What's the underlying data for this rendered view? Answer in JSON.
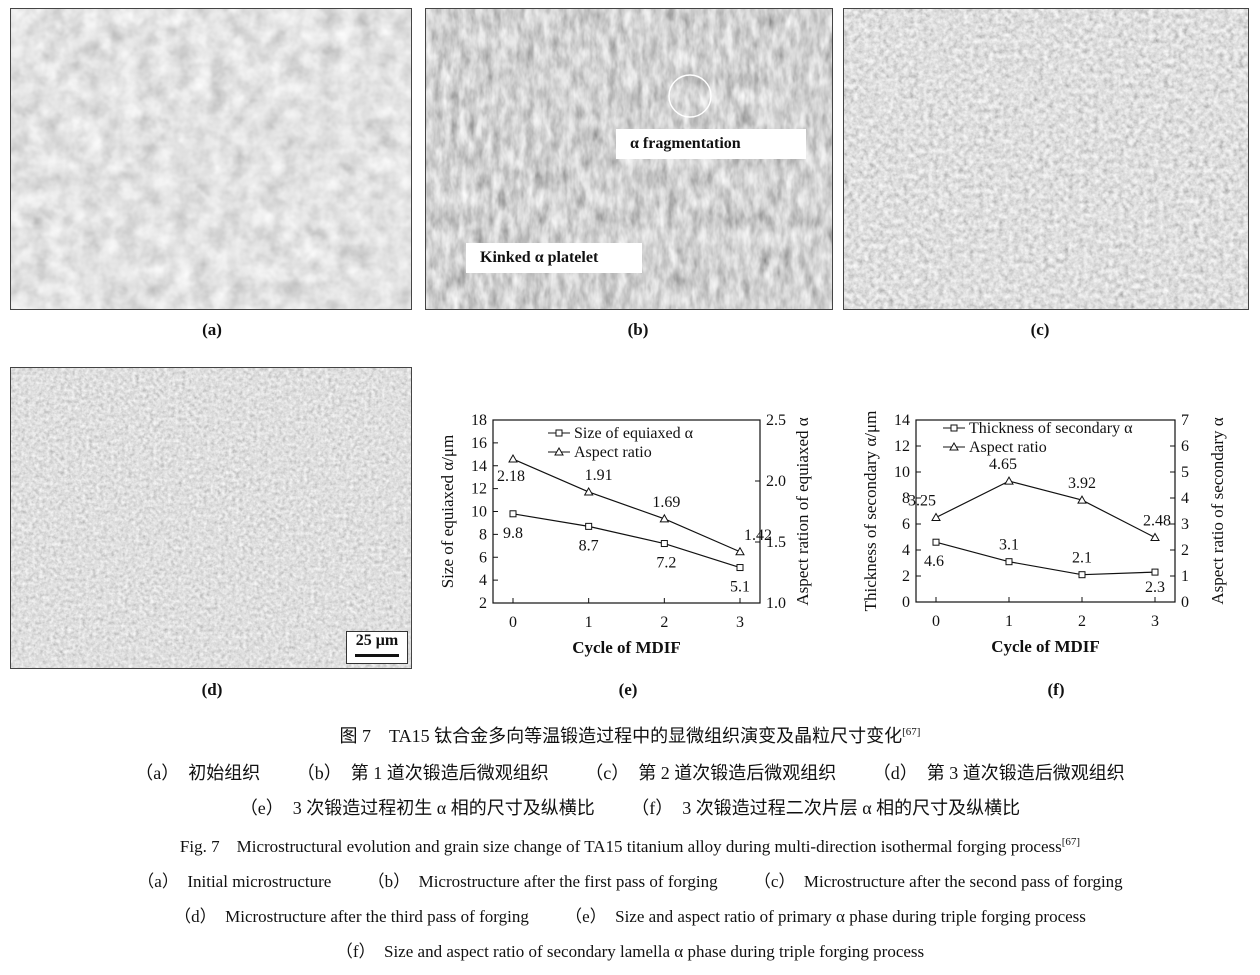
{
  "panels": {
    "a": {
      "label": "(a)"
    },
    "b": {
      "label": "(b)",
      "annotation_1": "α fragmentation",
      "annotation_2": "Kinked α platelet"
    },
    "c": {
      "label": "(c)"
    },
    "d": {
      "label": "(d)",
      "scale_bar": "25 μm"
    },
    "e": {
      "label": "(e)"
    },
    "f": {
      "label": "(f)"
    }
  },
  "chart_data": [
    {
      "type": "line",
      "panel": "e",
      "xlabel": "Cycle of MDIF",
      "ylabel": "Size of equiaxed α/μm",
      "y2label": "Aspect ration of equiaxed α",
      "x": [
        0,
        1,
        2,
        3
      ],
      "xticks": [
        "0",
        "1",
        "2",
        "3"
      ],
      "ylim": [
        2,
        18
      ],
      "yticks": [
        "2",
        "4",
        "6",
        "8",
        "10",
        "12",
        "14",
        "16",
        "18"
      ],
      "y2lim": [
        1.0,
        2.5
      ],
      "y2ticks": [
        "1.0",
        "1.5",
        "2.0",
        "2.5"
      ],
      "legend_position": "top-right",
      "series": [
        {
          "name": "Size of equiaxed α",
          "axis": "left",
          "marker": "square",
          "values": [
            9.8,
            8.7,
            7.2,
            5.1
          ],
          "labels": [
            "9.8",
            "8.7",
            "7.2",
            "5.1"
          ]
        },
        {
          "name": "Aspect ratio",
          "axis": "right",
          "marker": "triangle",
          "values": [
            2.18,
            1.91,
            1.69,
            1.42
          ],
          "labels": [
            "2.18",
            "1.91",
            "1.69",
            "1.42"
          ]
        }
      ]
    },
    {
      "type": "line",
      "panel": "f",
      "xlabel": "Cycle of MDIF",
      "ylabel": "Thickness of secondary α/μm",
      "y2label": "Aspect ratio of secondary α",
      "x": [
        0,
        1,
        2,
        3
      ],
      "xticks": [
        "0",
        "1",
        "2",
        "3"
      ],
      "ylim": [
        0,
        14
      ],
      "yticks": [
        "0",
        "2",
        "4",
        "6",
        "8",
        "10",
        "12",
        "14"
      ],
      "y2lim": [
        0,
        7
      ],
      "y2ticks": [
        "0",
        "1",
        "2",
        "3",
        "4",
        "5",
        "6",
        "7"
      ],
      "legend_position": "top",
      "series": [
        {
          "name": "Thickness of secondary α",
          "axis": "left",
          "marker": "square",
          "values": [
            4.6,
            3.1,
            2.1,
            2.3
          ],
          "labels": [
            "4.6",
            "3.1",
            "2.1",
            "2.3"
          ]
        },
        {
          "name": "Aspect ratio",
          "axis": "right",
          "marker": "triangle",
          "values": [
            3.25,
            4.65,
            3.92,
            2.48
          ],
          "labels": [
            "3.25",
            "4.65",
            "3.92",
            "2.48"
          ]
        }
      ]
    }
  ],
  "caption": {
    "cn_title": "图 7　TA15 钛合金多向等温锻造过程中的显微组织演变及晶粒尺寸变化",
    "cn_ref": "[67]",
    "cn_line1": [
      "（a）　初始组织",
      "（b）　第 1 道次锻造后微观组织",
      "（c）　第 2 道次锻造后微观组织",
      "（d）　第 3 道次锻造后微观组织"
    ],
    "cn_line2": [
      "（e）　3 次锻造过程初生 α 相的尺寸及纵横比",
      "（f）　3 次锻造过程二次片层 α 相的尺寸及纵横比"
    ],
    "en_title": "Fig. 7　Microstructural evolution and grain size change of TA15 titanium alloy during multi-direction isothermal forging process",
    "en_ref": "[67]",
    "en_line1": [
      "（a）　Initial microstructure",
      "（b）　Microstructure after the first pass of forging",
      "（c）　Microstructure after the second pass of forging"
    ],
    "en_line2": [
      "（d）　Microstructure after the third pass of forging",
      "（e）　Size and aspect ratio of primary α phase during triple forging process"
    ],
    "en_line3": "（f）　Size and aspect ratio of secondary lamella α phase during triple forging process"
  }
}
